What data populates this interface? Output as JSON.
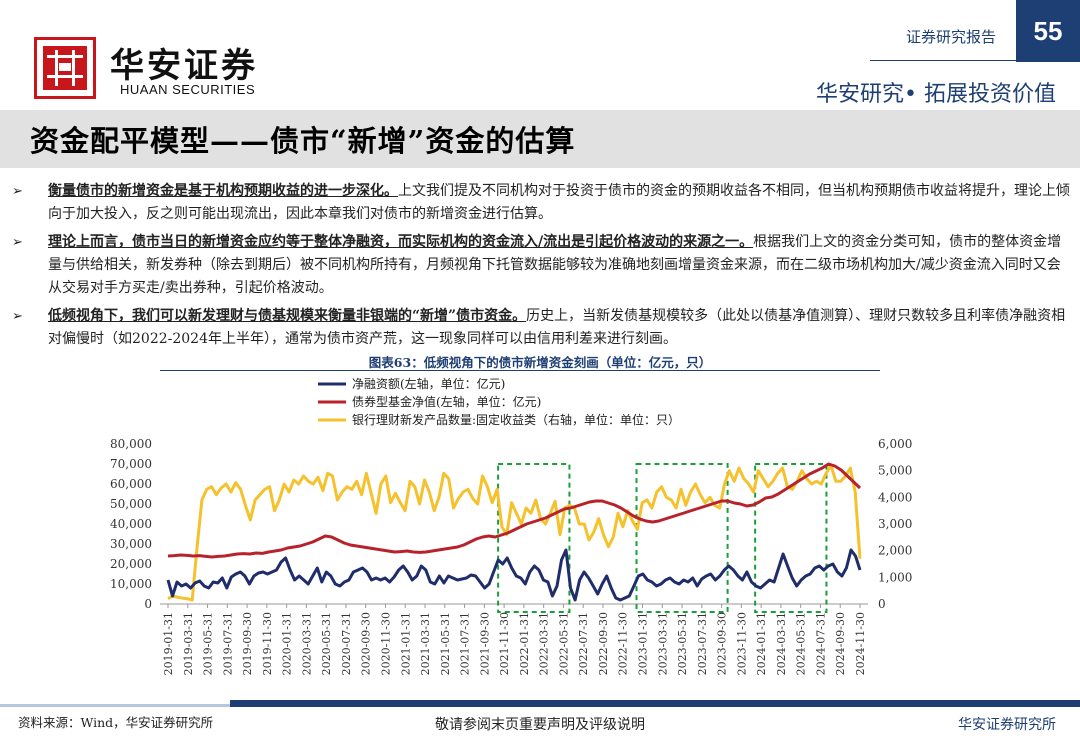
{
  "header": {
    "logo_cn": "华安证券",
    "logo_en": "HUAAN SECURITIES",
    "report_label": "证券研究报告",
    "page_number": "55",
    "slogan": "华安研究• 拓展投资价值"
  },
  "title": "资金配平模型——债市“新增”资金的估算",
  "bullets": [
    {
      "strong": "衡量债市的新增资金是基于机构预期收益的进一步深化。",
      "text": "上文我们提及不同机构对于投资于债市的资金的预期收益各不相同，但当机构预期债市收益将提升，理论上倾向于加大投入，反之则可能出现流出，因此本章我们对债市的新增资金进行估算。"
    },
    {
      "strong": "理论上而言，债市当日的新增资金应约等于整体净融资，而实际机构的资金流入/流出是引起价格波动的来源之一。",
      "text": "根据我们上文的资金分类可知，债市的整体资金增量与供给相关，新发券种（除去到期后）被不同机构所持有，月频视角下托管数据能够较为准确地刻画增量资金来源，而在二级市场机构加大/减少资金流入同时又会从交易对手方买走/卖出券种，引起价格波动。"
    },
    {
      "strong": "低频视角下，我们可以新发理财与债基规模来衡量非银端的“新增”债市资金。",
      "text": "历史上，当新发债基规模较多（此处以债基净值测算）、理财只数较多且利率债净融资相对偏慢时（如2022-2024年上半年），通常为债市资产荒，这一现象同样可以由信用利差来进行刻画。"
    }
  ],
  "figure_title": "图表63：低频视角下的债市新增资金刻画（单位：亿元，只）",
  "chart_data": {
    "type": "line",
    "title": "图表63：低频视角下的债市新增资金刻画（单位：亿元，只）",
    "x_tick_labels": [
      "2019-01-31",
      "2019-03-31",
      "2019-05-31",
      "2019-07-31",
      "2019-09-30",
      "2019-11-30",
      "2020-01-31",
      "2020-03-31",
      "2020-05-31",
      "2020-07-31",
      "2020-09-30",
      "2020-11-30",
      "2021-01-31",
      "2021-03-31",
      "2021-05-31",
      "2021-07-31",
      "2021-09-30",
      "2021-11-30",
      "2022-01-31",
      "2022-03-31",
      "2022-05-31",
      "2022-07-31",
      "2022-09-30",
      "2022-11-30",
      "2023-01-31",
      "2023-03-31",
      "2023-05-31",
      "2023-07-31",
      "2023-09-30",
      "2023-11-30",
      "2024-01-31",
      "2024-03-31",
      "2024-05-31",
      "2024-07-31",
      "2024-09-30",
      "2024-11-30"
    ],
    "left_axis": {
      "ylim": [
        0,
        80000
      ],
      "ticks": [
        "0",
        "10,000",
        "20,000",
        "30,000",
        "40,000",
        "50,000",
        "60,000",
        "70,000",
        "80,000"
      ]
    },
    "right_axis": {
      "ylim": [
        0,
        6000
      ],
      "ticks": [
        "0",
        "1,000",
        "2,000",
        "3,000",
        "4,000",
        "5,000",
        "6,000"
      ]
    },
    "legend_position": "top",
    "series": [
      {
        "name": "净融资额(左轴，单位：亿元)",
        "axis": "left",
        "color": "#1f2d6b",
        "values": [
          12000,
          4000,
          11000,
          9000,
          10000,
          8000,
          10500,
          11500,
          9000,
          8000,
          11000,
          10500,
          13000,
          8000,
          13500,
          15000,
          16000,
          14000,
          10000,
          14000,
          15500,
          16000,
          15000,
          16000,
          17000,
          21000,
          23000,
          17000,
          12000,
          14000,
          12000,
          10000,
          14000,
          18000,
          11000,
          16000,
          14000,
          10000,
          9000,
          11000,
          12000,
          16000,
          17000,
          18000,
          16000,
          12000,
          13000,
          12000,
          13000,
          11000,
          13500,
          17000,
          19000,
          16000,
          12000,
          14000,
          19000,
          17000,
          11000,
          10000,
          14000,
          10500,
          14000,
          13000,
          12000,
          12500,
          13000,
          14500,
          14000,
          11000,
          8000,
          10000,
          16000,
          22000,
          20000,
          23000,
          18000,
          14000,
          13000,
          10000,
          16000,
          19000,
          17000,
          12000,
          11000,
          4000,
          9000,
          22000,
          27000,
          8000,
          2000,
          12000,
          16000,
          13000,
          9000,
          5000,
          10000,
          14000,
          8000,
          3000,
          2000,
          3000,
          4000,
          9000,
          14000,
          15000,
          12000,
          11000,
          9000,
          10000,
          12000,
          13000,
          11000,
          10000,
          12000,
          11000,
          13000,
          9000,
          12500,
          14000,
          15000,
          12000,
          14000,
          17000,
          19000,
          17000,
          14000,
          12000,
          16000,
          11000,
          9000,
          8000,
          10000,
          12000,
          11000,
          18000,
          25000,
          19000,
          13000,
          9000,
          12000,
          14000,
          15000,
          18000,
          19000,
          17000,
          19000,
          20000,
          16000,
          14000,
          18000,
          27000,
          24000,
          17000
        ]
      },
      {
        "name": "债券型基金净值(左轴，单位：亿元)",
        "axis": "left",
        "color": "#b8222a",
        "values": [
          24000,
          24200,
          24500,
          24300,
          24000,
          24200,
          23800,
          23500,
          23800,
          24000,
          24500,
          25000,
          25200,
          25000,
          25500,
          25300,
          26000,
          26500,
          27000,
          28000,
          28500,
          29000,
          30000,
          31000,
          32500,
          34000,
          33500,
          32000,
          30500,
          29500,
          29000,
          28500,
          28000,
          27500,
          27000,
          26500,
          26000,
          26200,
          26500,
          26000,
          25800,
          26000,
          26500,
          27000,
          27500,
          28000,
          28500,
          29500,
          31000,
          32500,
          33500,
          34000,
          33500,
          34500,
          35500,
          37000,
          38500,
          40000,
          41000,
          42000,
          43000,
          44500,
          46000,
          47500,
          48000,
          49000,
          50000,
          51000,
          51500,
          51500,
          50500,
          49500,
          48000,
          46000,
          44000,
          42500,
          41500,
          41000,
          41500,
          42500,
          43500,
          44500,
          45500,
          46500,
          47500,
          48500,
          49500,
          50500,
          51500,
          51500,
          50500,
          50000,
          49000,
          49500,
          51000,
          53000,
          53500,
          55000,
          57000,
          59000,
          61000,
          63000,
          65000,
          66500,
          68000,
          70000,
          69000,
          67000,
          64000,
          61000,
          58000
        ]
      },
      {
        "name": "银行理财新发产品数量:固定收益类（右轴，单位：单位：只）",
        "axis": "right",
        "color": "#f5c12c",
        "values": [
          200,
          300,
          250,
          220,
          200,
          150,
          2100,
          3900,
          4300,
          4400,
          4100,
          4350,
          4500,
          4200,
          4550,
          4300,
          3700,
          3150,
          3900,
          4100,
          4300,
          4400,
          3500,
          3900,
          4500,
          4200,
          4650,
          4500,
          4800,
          4600,
          4500,
          4750,
          4250,
          4900,
          4800,
          3900,
          4200,
          4400,
          4300,
          4600,
          4100,
          4900,
          4150,
          3400,
          4500,
          4800,
          3800,
          4150,
          3800,
          3500,
          4600,
          4400,
          3750,
          4650,
          4200,
          3500,
          4000,
          4900,
          4700,
          3600,
          3950,
          4200,
          4300,
          3950,
          3750,
          4800,
          4400,
          3800,
          4300,
          2900,
          2600,
          3800,
          3400,
          3000,
          3600,
          3400,
          3900,
          3200,
          3000,
          3400,
          3850,
          2600,
          3600,
          3700,
          3600,
          3000,
          3000,
          2400,
          2700,
          3200,
          2600,
          2150,
          2500,
          3400,
          2900,
          3500,
          3100,
          2800,
          3800,
          3900,
          3600,
          4200,
          4400,
          4000,
          3900,
          3600,
          4300,
          3700,
          4200,
          4500,
          4100,
          3800,
          4000,
          3700,
          3600,
          4500,
          5000,
          4600,
          5100,
          4700,
          4500,
          4200,
          5000,
          4700,
          4400,
          4600,
          4900,
          5100,
          4400,
          4300,
          4600,
          5000,
          4700,
          4500,
          4600,
          4500,
          4900,
          5200,
          4600,
          4600,
          4800,
          5100,
          4200,
          1700
        ]
      }
    ],
    "highlight_boxes": [
      {
        "from": "2021-11-30",
        "to": "2022-05-31"
      },
      {
        "from": "2023-01-31",
        "to": "2023-09-30"
      },
      {
        "from": "2024-01-31",
        "to": "2024-07-31"
      }
    ]
  },
  "footer": {
    "source": "资料来源：Wind，华安证券研究所",
    "center": "敬请参阅末页重要声明及评级说明",
    "right": "华安证券研究所"
  }
}
